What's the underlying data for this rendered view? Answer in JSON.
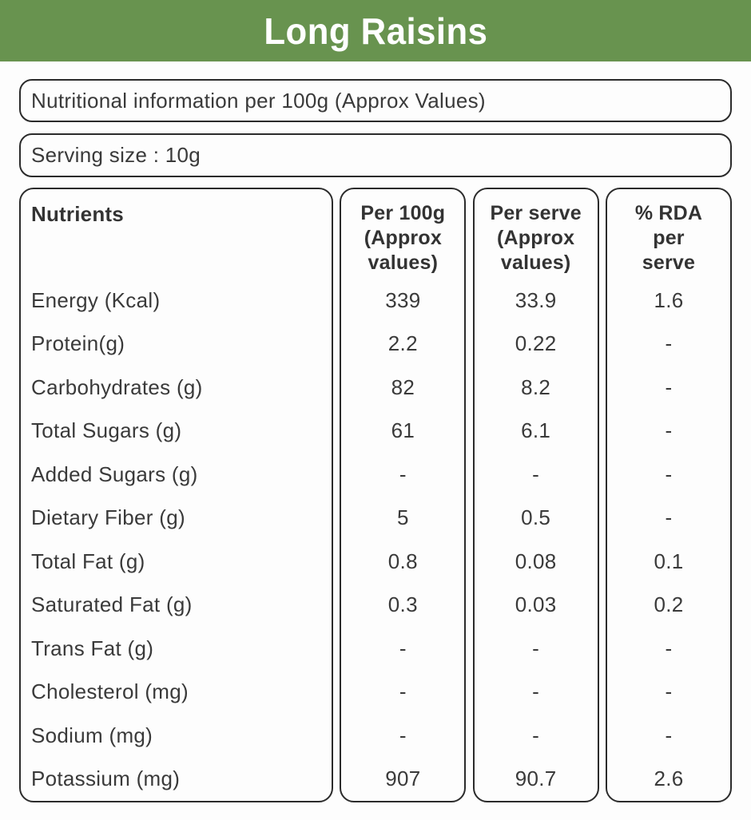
{
  "header": {
    "title": "Long Raisins",
    "bg_color": "#68934f",
    "text_color": "#ffffff"
  },
  "info_boxes": {
    "nutritional_info": "Nutritional information per 100g (Approx Values)",
    "serving_size": "Serving size : 10g"
  },
  "table": {
    "columns": [
      {
        "label": "Nutrients"
      },
      {
        "label": "Per 100g\n(Approx\nvalues)"
      },
      {
        "label": "Per serve\n(Approx\nvalues)"
      },
      {
        "label": "% RDA\nper\nserve"
      }
    ],
    "rows": [
      {
        "nutrient": "Energy (Kcal)",
        "per_100g": "339",
        "per_serve": "33.9",
        "rda_per_serve": "1.6"
      },
      {
        "nutrient": "Protein(g)",
        "per_100g": "2.2",
        "per_serve": "0.22",
        "rda_per_serve": "-"
      },
      {
        "nutrient": "Carbohydrates (g)",
        "per_100g": "82",
        "per_serve": "8.2",
        "rda_per_serve": "-"
      },
      {
        "nutrient": "Total Sugars (g)",
        "per_100g": "61",
        "per_serve": "6.1",
        "rda_per_serve": "-"
      },
      {
        "nutrient": "Added Sugars (g)",
        "per_100g": "-",
        "per_serve": "-",
        "rda_per_serve": "-"
      },
      {
        "nutrient": "Dietary Fiber (g)",
        "per_100g": "5",
        "per_serve": "0.5",
        "rda_per_serve": "-"
      },
      {
        "nutrient": "Total Fat (g)",
        "per_100g": "0.8",
        "per_serve": "0.08",
        "rda_per_serve": "0.1"
      },
      {
        "nutrient": "Saturated Fat (g)",
        "per_100g": "0.3",
        "per_serve": "0.03",
        "rda_per_serve": "0.2"
      },
      {
        "nutrient": "Trans Fat (g)",
        "per_100g": "-",
        "per_serve": "-",
        "rda_per_serve": "-"
      },
      {
        "nutrient": "Cholesterol (mg)",
        "per_100g": "-",
        "per_serve": "-",
        "rda_per_serve": "-"
      },
      {
        "nutrient": "Sodium (mg)",
        "per_100g": "-",
        "per_serve": "-",
        "rda_per_serve": "-"
      },
      {
        "nutrient": "Potassium (mg)",
        "per_100g": "907",
        "per_serve": "90.7",
        "rda_per_serve": "2.6"
      }
    ]
  }
}
